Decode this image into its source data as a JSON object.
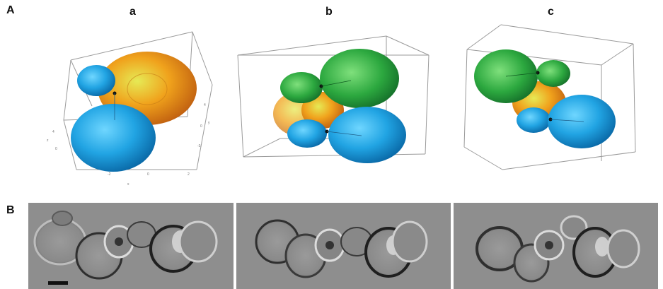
{
  "panel_labels": {
    "A": "A",
    "B": "B"
  },
  "subpanel_labels": [
    "a",
    "b",
    "c"
  ],
  "colors": {
    "blue": "#2aa8e6",
    "orange": "#f0a21c",
    "green": "#2fae46",
    "box": "#9a9a9a",
    "micro_bg": "#8e8e8e"
  },
  "tick_labels": {
    "a_bottom": [
      "-2",
      "0",
      "2"
    ],
    "a_right": [
      "4",
      "0",
      "-3"
    ],
    "a_left": [
      "4",
      "0"
    ],
    "a_axis": [
      "x",
      "y",
      "z"
    ]
  },
  "scalebar": "scale-bar"
}
